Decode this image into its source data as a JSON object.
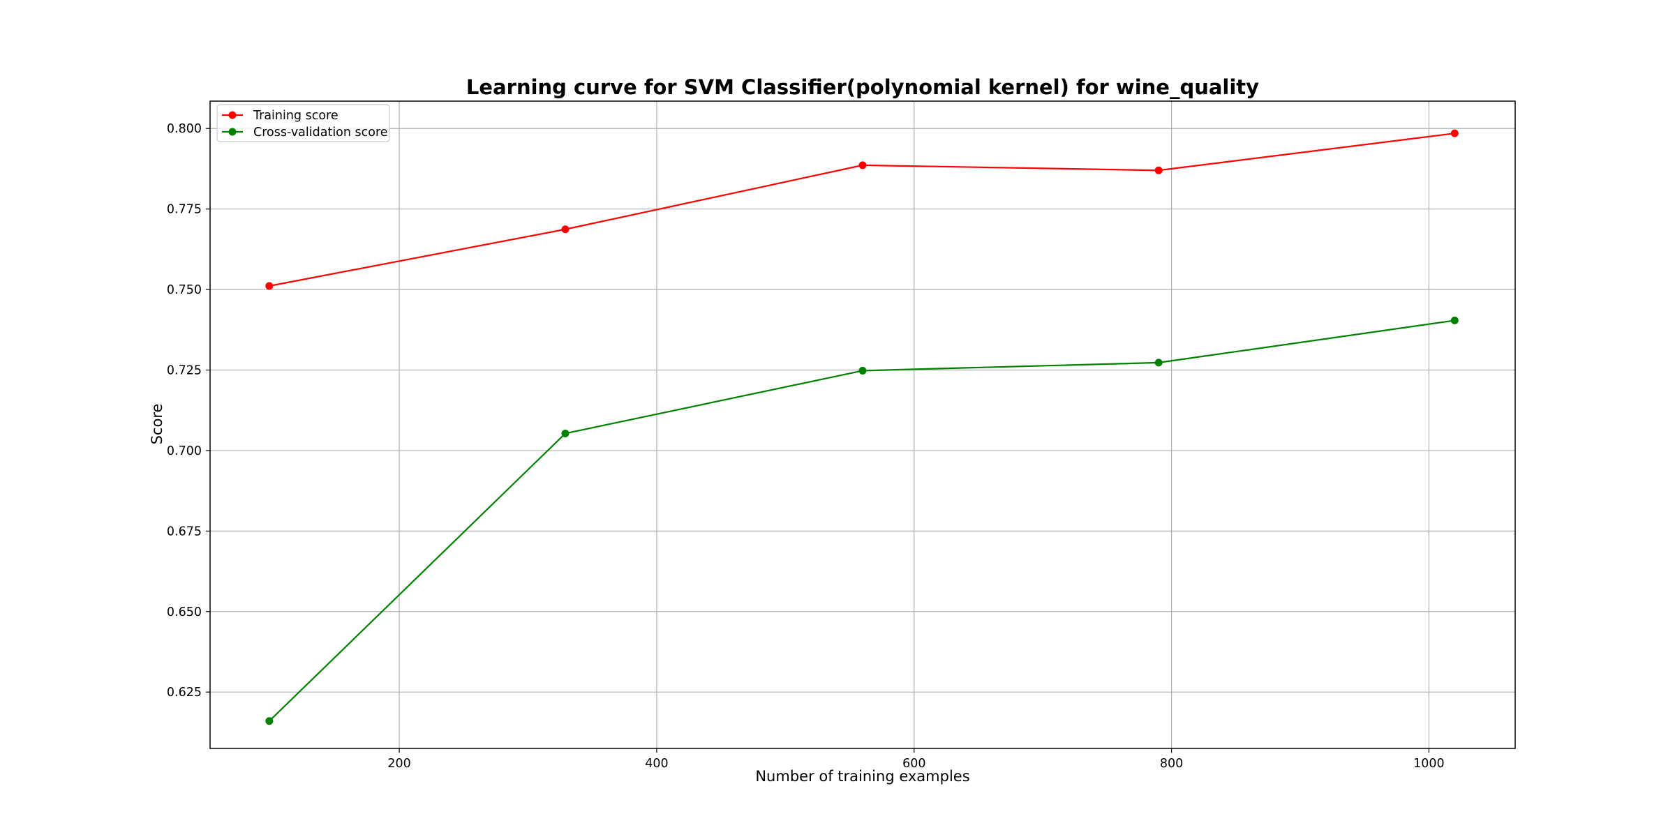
{
  "chart_data": {
    "type": "line",
    "title": "Learning curve for SVM Classifier(polynomial kernel) for wine_quality",
    "xlabel": "Number of training examples",
    "ylabel": "Score",
    "xlim": [
      53,
      1067
    ],
    "ylim": [
      0.6075,
      0.8085
    ],
    "xticks": [
      200,
      400,
      600,
      800,
      1000
    ],
    "xtick_labels": [
      "200",
      "400",
      "600",
      "800",
      "1000"
    ],
    "yticks": [
      0.625,
      0.65,
      0.675,
      0.7,
      0.725,
      0.75,
      0.775,
      0.8
    ],
    "ytick_labels": [
      "0.625",
      "0.650",
      "0.675",
      "0.700",
      "0.725",
      "0.750",
      "0.775",
      "0.800"
    ],
    "grid": true,
    "legend_position": "top-left",
    "x": [
      99,
      329,
      560,
      790,
      1020
    ],
    "series": [
      {
        "name": "Training score",
        "color": "#ff0000",
        "marker": "circle",
        "values": [
          0.7511,
          0.7687,
          0.7886,
          0.787,
          0.7985
        ]
      },
      {
        "name": "Cross-validation score",
        "color": "#008000",
        "marker": "circle",
        "values": [
          0.616,
          0.7053,
          0.7248,
          0.7273,
          0.7404
        ]
      }
    ]
  }
}
